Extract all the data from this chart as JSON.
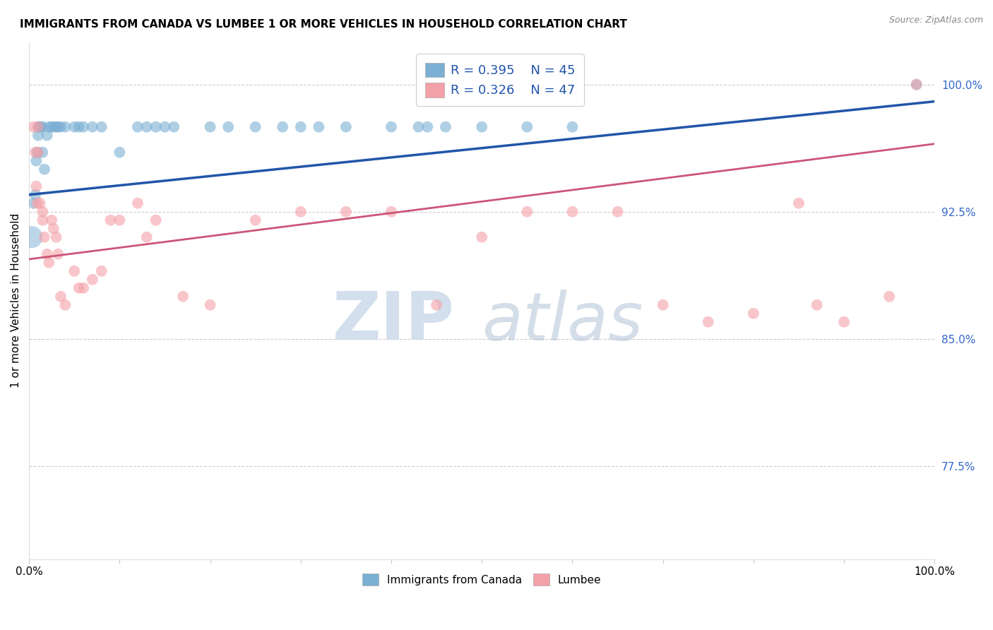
{
  "title": "IMMIGRANTS FROM CANADA VS LUMBEE 1 OR MORE VEHICLES IN HOUSEHOLD CORRELATION CHART",
  "source": "Source: ZipAtlas.com",
  "ylabel": "1 or more Vehicles in Household",
  "xlim": [
    0.0,
    1.0
  ],
  "ylim": [
    0.72,
    1.025
  ],
  "yticks": [
    0.775,
    0.85,
    0.925,
    1.0
  ],
  "ytick_labels": [
    "77.5%",
    "85.0%",
    "92.5%",
    "100.0%"
  ],
  "blue_color": "#7BAFD4",
  "pink_color": "#F4A0A8",
  "blue_line_color": "#2255AA",
  "pink_line_color": "#CC5577",
  "background_color": "#FFFFFF",
  "grid_color": "#CCCCCC",
  "blue_x": [
    0.005,
    0.007,
    0.008,
    0.009,
    0.01,
    0.01,
    0.012,
    0.013,
    0.015,
    0.015,
    0.017,
    0.02,
    0.022,
    0.025,
    0.027,
    0.03,
    0.032,
    0.035,
    0.04,
    0.05,
    0.055,
    0.06,
    0.07,
    0.08,
    0.1,
    0.12,
    0.13,
    0.14,
    0.15,
    0.16,
    0.2,
    0.22,
    0.25,
    0.28,
    0.3,
    0.32,
    0.35,
    0.4,
    0.43,
    0.44,
    0.46,
    0.5,
    0.55,
    0.6,
    0.98
  ],
  "blue_y": [
    0.93,
    0.935,
    0.955,
    0.96,
    0.97,
    0.975,
    0.975,
    0.975,
    0.975,
    0.96,
    0.95,
    0.97,
    0.975,
    0.975,
    0.975,
    0.975,
    0.975,
    0.975,
    0.975,
    0.975,
    0.975,
    0.975,
    0.975,
    0.975,
    0.96,
    0.975,
    0.975,
    0.975,
    0.975,
    0.975,
    0.975,
    0.975,
    0.975,
    0.975,
    0.975,
    0.975,
    0.975,
    0.975,
    0.975,
    0.975,
    0.975,
    0.975,
    0.975,
    0.975,
    1.0
  ],
  "pink_x": [
    0.005,
    0.007,
    0.008,
    0.009,
    0.01,
    0.01,
    0.012,
    0.015,
    0.015,
    0.017,
    0.02,
    0.022,
    0.025,
    0.027,
    0.03,
    0.032,
    0.035,
    0.04,
    0.05,
    0.055,
    0.06,
    0.07,
    0.08,
    0.09,
    0.1,
    0.12,
    0.13,
    0.14,
    0.17,
    0.2,
    0.25,
    0.3,
    0.35,
    0.4,
    0.45,
    0.5,
    0.55,
    0.6,
    0.65,
    0.7,
    0.75,
    0.8,
    0.85,
    0.87,
    0.9,
    0.95,
    0.98
  ],
  "pink_y": [
    0.975,
    0.96,
    0.94,
    0.93,
    0.975,
    0.96,
    0.93,
    0.925,
    0.92,
    0.91,
    0.9,
    0.895,
    0.92,
    0.915,
    0.91,
    0.9,
    0.875,
    0.87,
    0.89,
    0.88,
    0.88,
    0.885,
    0.89,
    0.92,
    0.92,
    0.93,
    0.91,
    0.92,
    0.875,
    0.87,
    0.92,
    0.925,
    0.925,
    0.925,
    0.87,
    0.91,
    0.925,
    0.925,
    0.925,
    0.87,
    0.86,
    0.865,
    0.93,
    0.87,
    0.86,
    0.875,
    1.0
  ],
  "blue_line_start_y": 0.935,
  "blue_line_end_y": 0.99,
  "pink_line_start_y": 0.897,
  "pink_line_end_y": 0.965,
  "watermark_zip": "ZIP",
  "watermark_atlas": "atlas"
}
